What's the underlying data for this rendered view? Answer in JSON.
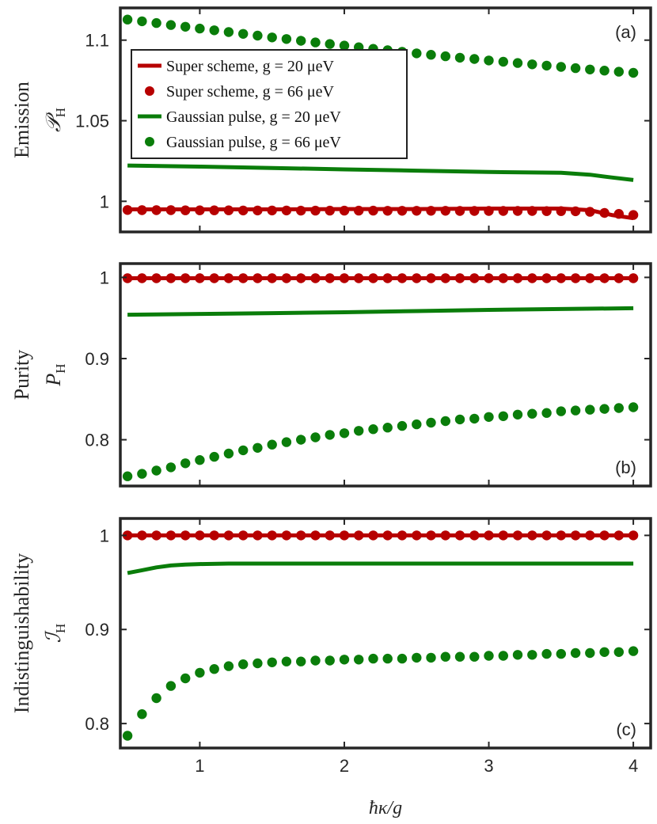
{
  "figure": {
    "xlabel": "ħκ/g"
  },
  "colors": {
    "red": "#b70000",
    "green": "#0a7d0a",
    "axis": "#262626"
  },
  "legend": {
    "items": [
      {
        "label": "Super scheme, g = 20 μeV",
        "style": "line",
        "color": "red"
      },
      {
        "label": "Super scheme, g = 66 μeV",
        "style": "dot",
        "color": "red"
      },
      {
        "label": "Gaussian pulse, g = 20 μeV",
        "style": "line",
        "color": "green"
      },
      {
        "label": "Gaussian pulse, g = 66 μeV",
        "style": "dot",
        "color": "green"
      }
    ]
  },
  "chart_data": [
    {
      "type": "line",
      "panel": "(a)",
      "ylabel": "Emission",
      "ysymbol": "𝒫",
      "ysub": "H",
      "xlim": [
        0.45,
        4.12
      ],
      "ylim": [
        0.981,
        1.12
      ],
      "xticks": [
        1,
        2,
        3,
        4
      ],
      "yticks": [
        1,
        1.05,
        1.1
      ],
      "ytick_labels": [
        "1",
        "1.05",
        "1.1"
      ],
      "series": [
        {
          "name": "Super scheme, g = 20 μeV",
          "style": "line",
          "color": "red",
          "x": [
            0.5,
            1.0,
            1.5,
            2.0,
            2.5,
            3.0,
            3.5,
            3.7,
            3.85,
            4.0
          ],
          "y": [
            0.995,
            0.995,
            0.995,
            0.9952,
            0.9952,
            0.9955,
            0.9955,
            0.9945,
            0.9915,
            0.9895
          ]
        },
        {
          "name": "Super scheme, g = 66 μeV",
          "style": "dot",
          "color": "red",
          "x": [
            0.5,
            0.6,
            0.7,
            0.8,
            0.9,
            1.0,
            1.1,
            1.2,
            1.3,
            1.4,
            1.5,
            1.6,
            1.7,
            1.8,
            1.9,
            2.0,
            2.1,
            2.2,
            2.3,
            2.4,
            2.5,
            2.6,
            2.7,
            2.8,
            2.9,
            3.0,
            3.1,
            3.2,
            3.3,
            3.4,
            3.5,
            3.6,
            3.7,
            3.8,
            3.9,
            4.0
          ],
          "y": [
            0.9946,
            0.9945,
            0.9945,
            0.9945,
            0.9944,
            0.9944,
            0.9944,
            0.9944,
            0.9943,
            0.9943,
            0.9943,
            0.9943,
            0.9942,
            0.9942,
            0.9942,
            0.9942,
            0.9942,
            0.9942,
            0.9941,
            0.9941,
            0.9941,
            0.9941,
            0.9941,
            0.994,
            0.994,
            0.994,
            0.994,
            0.994,
            0.994,
            0.9939,
            0.9939,
            0.9938,
            0.9935,
            0.9928,
            0.9922,
            0.9915
          ]
        },
        {
          "name": "Gaussian pulse, g = 20 μeV",
          "style": "line",
          "color": "green",
          "x": [
            0.5,
            1.0,
            1.5,
            2.0,
            2.5,
            3.0,
            3.5,
            3.7,
            3.85,
            4.0
          ],
          "y": [
            1.0222,
            1.0215,
            1.0207,
            1.0198,
            1.019,
            1.0182,
            1.0177,
            1.0165,
            1.0148,
            1.0132
          ]
        },
        {
          "name": "Gaussian pulse, g = 66 μeV",
          "style": "dot",
          "color": "green",
          "x": [
            0.5,
            0.6,
            0.7,
            0.8,
            0.9,
            1.0,
            1.1,
            1.2,
            1.3,
            1.4,
            1.5,
            1.6,
            1.7,
            1.8,
            1.9,
            2.0,
            2.1,
            2.2,
            2.3,
            2.4,
            2.5,
            2.6,
            2.7,
            2.8,
            2.9,
            3.0,
            3.1,
            3.2,
            3.3,
            3.4,
            3.5,
            3.6,
            3.7,
            3.8,
            3.9,
            4.0
          ],
          "y": [
            1.1128,
            1.1117,
            1.1106,
            1.1094,
            1.1083,
            1.1072,
            1.1061,
            1.105,
            1.1039,
            1.1028,
            1.1017,
            1.1007,
            1.0996,
            1.0986,
            1.0976,
            1.0966,
            1.0956,
            1.0946,
            1.0937,
            1.0928,
            1.0918,
            1.0909,
            1.09,
            1.0891,
            1.0883,
            1.0874,
            1.0866,
            1.0858,
            1.085,
            1.0842,
            1.0834,
            1.0826,
            1.0818,
            1.0811,
            1.0804,
            1.0797
          ]
        }
      ]
    },
    {
      "type": "line",
      "panel": "(b)",
      "ylabel": "Purity",
      "ysymbol": "P",
      "ysub": "H",
      "xlim": [
        0.45,
        4.12
      ],
      "ylim": [
        0.743,
        1.017
      ],
      "xticks": [
        1,
        2,
        3,
        4
      ],
      "yticks": [
        0.8,
        0.9,
        1
      ],
      "ytick_labels": [
        "0.8",
        "0.9",
        "1"
      ],
      "series": [
        {
          "name": "Super scheme, g = 20 μeV",
          "style": "line",
          "color": "red",
          "x": [
            0.5,
            4.0
          ],
          "y": [
            0.999,
            0.999
          ]
        },
        {
          "name": "Super scheme, g = 66 μeV",
          "style": "dot",
          "color": "red",
          "x": [
            0.5,
            0.6,
            0.7,
            0.8,
            0.9,
            1.0,
            1.1,
            1.2,
            1.3,
            1.4,
            1.5,
            1.6,
            1.7,
            1.8,
            1.9,
            2.0,
            2.1,
            2.2,
            2.3,
            2.4,
            2.5,
            2.6,
            2.7,
            2.8,
            2.9,
            3.0,
            3.1,
            3.2,
            3.3,
            3.4,
            3.5,
            3.6,
            3.7,
            3.8,
            3.9,
            4.0
          ],
          "y": [
            0.999,
            0.999,
            0.999,
            0.999,
            0.999,
            0.999,
            0.999,
            0.999,
            0.999,
            0.999,
            0.999,
            0.999,
            0.999,
            0.999,
            0.999,
            0.999,
            0.999,
            0.999,
            0.999,
            0.999,
            0.999,
            0.999,
            0.999,
            0.999,
            0.999,
            0.999,
            0.999,
            0.999,
            0.999,
            0.999,
            0.999,
            0.999,
            0.999,
            0.999,
            0.999,
            0.999
          ]
        },
        {
          "name": "Gaussian pulse, g = 20 μeV",
          "style": "line",
          "color": "green",
          "x": [
            0.5,
            1.0,
            1.5,
            2.0,
            2.5,
            3.0,
            3.5,
            4.0
          ],
          "y": [
            0.954,
            0.955,
            0.956,
            0.957,
            0.9585,
            0.96,
            0.961,
            0.962
          ]
        },
        {
          "name": "Gaussian pulse, g = 66 μeV",
          "style": "dot",
          "color": "green",
          "x": [
            0.5,
            0.6,
            0.7,
            0.8,
            0.9,
            1.0,
            1.1,
            1.2,
            1.3,
            1.4,
            1.5,
            1.6,
            1.7,
            1.8,
            1.9,
            2.0,
            2.1,
            2.2,
            2.3,
            2.4,
            2.5,
            2.6,
            2.7,
            2.8,
            2.9,
            3.0,
            3.1,
            3.2,
            3.3,
            3.4,
            3.5,
            3.6,
            3.7,
            3.8,
            3.9,
            4.0
          ],
          "y": [
            0.755,
            0.758,
            0.762,
            0.766,
            0.771,
            0.775,
            0.779,
            0.783,
            0.787,
            0.79,
            0.794,
            0.797,
            0.8,
            0.803,
            0.806,
            0.808,
            0.811,
            0.813,
            0.815,
            0.817,
            0.819,
            0.821,
            0.823,
            0.825,
            0.826,
            0.828,
            0.829,
            0.831,
            0.832,
            0.833,
            0.835,
            0.836,
            0.837,
            0.838,
            0.839,
            0.84
          ]
        }
      ]
    },
    {
      "type": "line",
      "panel": "(c)",
      "ylabel": "Indistinguishability",
      "ysymbol": "ℐ",
      "ysub": "H",
      "xlim": [
        0.45,
        4.12
      ],
      "ylim": [
        0.774,
        1.018
      ],
      "xticks": [
        1,
        2,
        3,
        4
      ],
      "xtick_labels": [
        "1",
        "2",
        "3",
        "4"
      ],
      "yticks": [
        0.8,
        0.9,
        1
      ],
      "ytick_labels": [
        "0.8",
        "0.9",
        "1"
      ],
      "series": [
        {
          "name": "Super scheme, g = 20 μeV",
          "style": "line",
          "color": "red",
          "x": [
            0.5,
            4.0
          ],
          "y": [
            1.0,
            1.0
          ]
        },
        {
          "name": "Super scheme, g = 66 μeV",
          "style": "dot",
          "color": "red",
          "x": [
            0.5,
            0.6,
            0.7,
            0.8,
            0.9,
            1.0,
            1.1,
            1.2,
            1.3,
            1.4,
            1.5,
            1.6,
            1.7,
            1.8,
            1.9,
            2.0,
            2.1,
            2.2,
            2.3,
            2.4,
            2.5,
            2.6,
            2.7,
            2.8,
            2.9,
            3.0,
            3.1,
            3.2,
            3.3,
            3.4,
            3.5,
            3.6,
            3.7,
            3.8,
            3.9,
            4.0
          ],
          "y": [
            1.0,
            1.0,
            1.0,
            1.0,
            1.0,
            1.0,
            1.0,
            1.0,
            1.0,
            1.0,
            1.0,
            1.0,
            1.0,
            1.0,
            1.0,
            1.0,
            1.0,
            1.0,
            1.0,
            1.0,
            1.0,
            1.0,
            1.0,
            1.0,
            1.0,
            1.0,
            1.0,
            1.0,
            1.0,
            1.0,
            1.0,
            1.0,
            1.0,
            1.0,
            1.0,
            1.0
          ]
        },
        {
          "name": "Gaussian pulse, g = 20 μeV",
          "style": "line",
          "color": "green",
          "x": [
            0.5,
            0.6,
            0.7,
            0.8,
            0.9,
            1.0,
            1.2,
            1.5,
            2.0,
            3.0,
            4.0
          ],
          "y": [
            0.96,
            0.963,
            0.966,
            0.968,
            0.969,
            0.9695,
            0.97,
            0.97,
            0.97,
            0.97,
            0.97
          ]
        },
        {
          "name": "Gaussian pulse, g = 66 μeV",
          "style": "dot",
          "color": "green",
          "x": [
            0.5,
            0.6,
            0.7,
            0.8,
            0.9,
            1.0,
            1.1,
            1.2,
            1.3,
            1.4,
            1.5,
            1.6,
            1.7,
            1.8,
            1.9,
            2.0,
            2.1,
            2.2,
            2.3,
            2.4,
            2.5,
            2.6,
            2.7,
            2.8,
            2.9,
            3.0,
            3.1,
            3.2,
            3.3,
            3.4,
            3.5,
            3.6,
            3.7,
            3.8,
            3.9,
            4.0
          ],
          "y": [
            0.787,
            0.81,
            0.827,
            0.84,
            0.848,
            0.854,
            0.858,
            0.861,
            0.863,
            0.864,
            0.865,
            0.866,
            0.866,
            0.867,
            0.867,
            0.868,
            0.868,
            0.869,
            0.869,
            0.869,
            0.87,
            0.87,
            0.871,
            0.871,
            0.871,
            0.872,
            0.872,
            0.873,
            0.873,
            0.874,
            0.874,
            0.875,
            0.875,
            0.876,
            0.876,
            0.877
          ]
        }
      ]
    }
  ]
}
